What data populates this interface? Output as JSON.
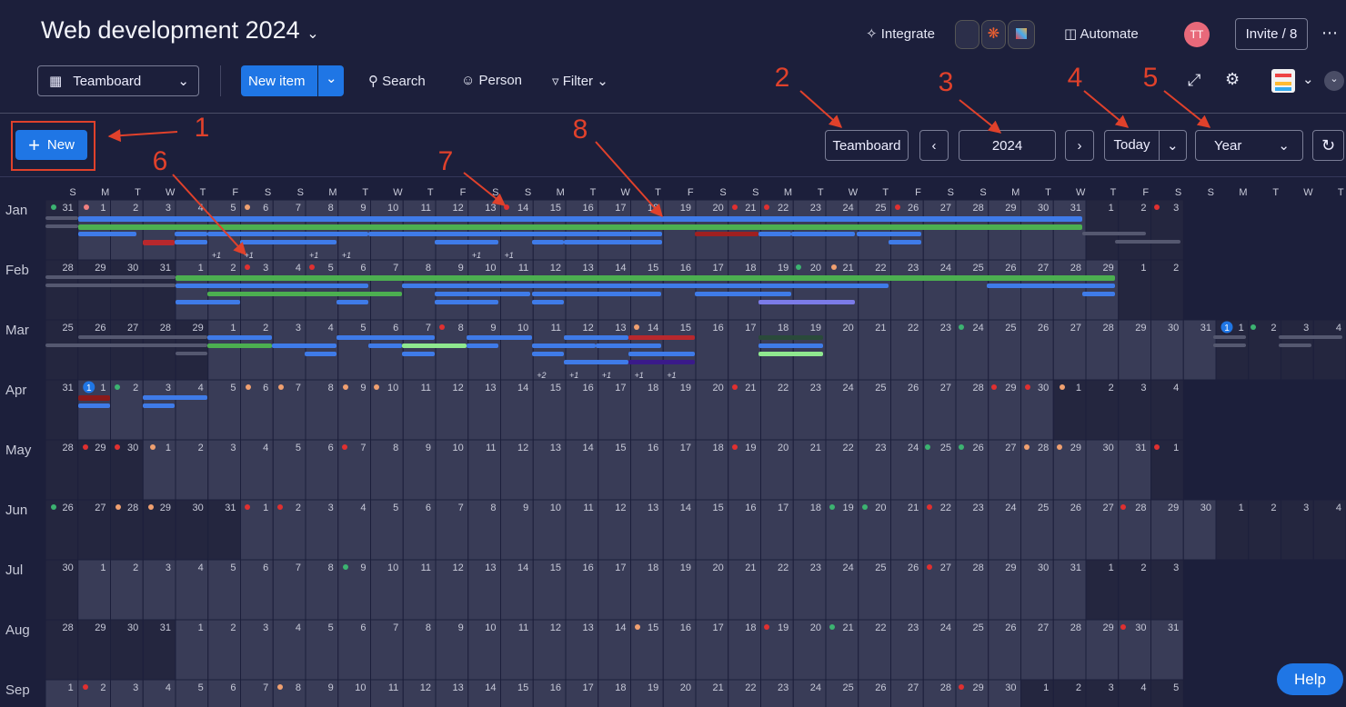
{
  "header": {
    "title": "Web development 2024",
    "integrate": "Integrate",
    "automate": "Automate",
    "avatar": "TT",
    "invite": "Invite / 8"
  },
  "toolbar": {
    "view": "Teamboard",
    "new_item": "New item",
    "search": "Search",
    "person": "Person",
    "filter": "Filter"
  },
  "controls": {
    "new": "New",
    "board": "Teamboard",
    "year": "2024",
    "today": "Today",
    "scale": "Year"
  },
  "help": "Help",
  "annotations": [
    "1",
    "2",
    "3",
    "4",
    "5",
    "6",
    "7",
    "8"
  ],
  "calendar": {
    "weekdays": [
      "S",
      "M",
      "T",
      "W",
      "T",
      "F",
      "S",
      "S",
      "M",
      "T",
      "W",
      "T",
      "F",
      "S",
      "S",
      "M",
      "T",
      "W",
      "T",
      "F",
      "S",
      "S",
      "M",
      "T",
      "W",
      "T",
      "F",
      "S",
      "S",
      "M",
      "T",
      "W",
      "T",
      "F",
      "S",
      "S",
      "M",
      "T",
      "W",
      "T"
    ],
    "rows": [
      {
        "month": "Jan",
        "days": [
          31,
          1,
          2,
          3,
          4,
          5,
          6,
          7,
          8,
          9,
          10,
          11,
          12,
          13,
          14,
          15,
          16,
          17,
          18,
          19,
          20,
          21,
          22,
          23,
          24,
          25,
          26,
          27,
          28,
          29,
          30,
          31,
          1,
          2,
          3
        ],
        "more": [
          "+1",
          "+1",
          "+1",
          "+1",
          "+1",
          "+1"
        ]
      },
      {
        "month": "Feb",
        "days": [
          28,
          29,
          30,
          31,
          1,
          2,
          3,
          4,
          5,
          6,
          7,
          8,
          9,
          10,
          11,
          12,
          13,
          14,
          15,
          16,
          17,
          18,
          19,
          20,
          21,
          22,
          23,
          24,
          25,
          26,
          27,
          28,
          29,
          1,
          2
        ]
      },
      {
        "month": "Mar",
        "days": [
          25,
          26,
          27,
          28,
          29,
          1,
          2,
          3,
          4,
          5,
          6,
          7,
          8,
          9,
          10,
          11,
          12,
          13,
          14,
          15,
          16,
          17,
          18,
          19,
          20,
          21,
          22,
          23,
          24,
          25,
          26,
          27,
          28,
          29,
          30,
          31,
          1,
          2,
          3,
          4
        ],
        "more": [
          "+2",
          "+1",
          "+1",
          "+1",
          "+1"
        ],
        "badge": "1"
      },
      {
        "month": "Apr",
        "days": [
          31,
          1,
          2,
          3,
          4,
          5,
          6,
          7,
          8,
          9,
          10,
          11,
          12,
          13,
          14,
          15,
          16,
          17,
          18,
          19,
          20,
          21,
          22,
          23,
          24,
          25,
          26,
          27,
          28,
          29,
          30,
          1,
          2,
          3,
          4
        ],
        "badge": "1"
      },
      {
        "month": "May",
        "days": [
          28,
          29,
          30,
          1,
          2,
          3,
          4,
          5,
          6,
          7,
          8,
          9,
          10,
          11,
          12,
          13,
          14,
          15,
          16,
          17,
          18,
          19,
          20,
          21,
          22,
          23,
          24,
          25,
          26,
          27,
          28,
          29,
          30,
          31,
          1
        ]
      },
      {
        "month": "Jun",
        "days": [
          26,
          27,
          28,
          29,
          30,
          31,
          1,
          2,
          3,
          4,
          5,
          6,
          7,
          8,
          9,
          10,
          11,
          12,
          13,
          14,
          15,
          16,
          17,
          18,
          19,
          20,
          21,
          22,
          23,
          24,
          25,
          26,
          27,
          28,
          29,
          30,
          1,
          2,
          3,
          4
        ]
      },
      {
        "month": "Jul",
        "days": [
          30,
          1,
          2,
          3,
          4,
          5,
          6,
          7,
          8,
          9,
          10,
          11,
          12,
          13,
          14,
          15,
          16,
          17,
          18,
          19,
          20,
          21,
          22,
          23,
          24,
          25,
          26,
          27,
          28,
          29,
          30,
          31,
          1,
          2,
          3
        ]
      },
      {
        "month": "Aug",
        "days": [
          28,
          29,
          30,
          31,
          1,
          2,
          3,
          4,
          5,
          6,
          7,
          8,
          9,
          10,
          11,
          12,
          13,
          14,
          15,
          16,
          17,
          18,
          19,
          20,
          21,
          22,
          23,
          24,
          25,
          26,
          27,
          28,
          29,
          30,
          31
        ]
      },
      {
        "month": "Sep",
        "days": [
          1,
          2,
          3,
          4,
          5,
          6,
          7,
          8,
          9,
          10,
          11,
          12,
          13,
          14,
          15,
          16,
          17,
          18,
          19,
          20,
          21,
          22,
          23,
          24,
          25,
          26,
          27,
          28,
          29,
          30,
          1,
          2,
          3,
          4,
          5
        ]
      }
    ]
  }
}
